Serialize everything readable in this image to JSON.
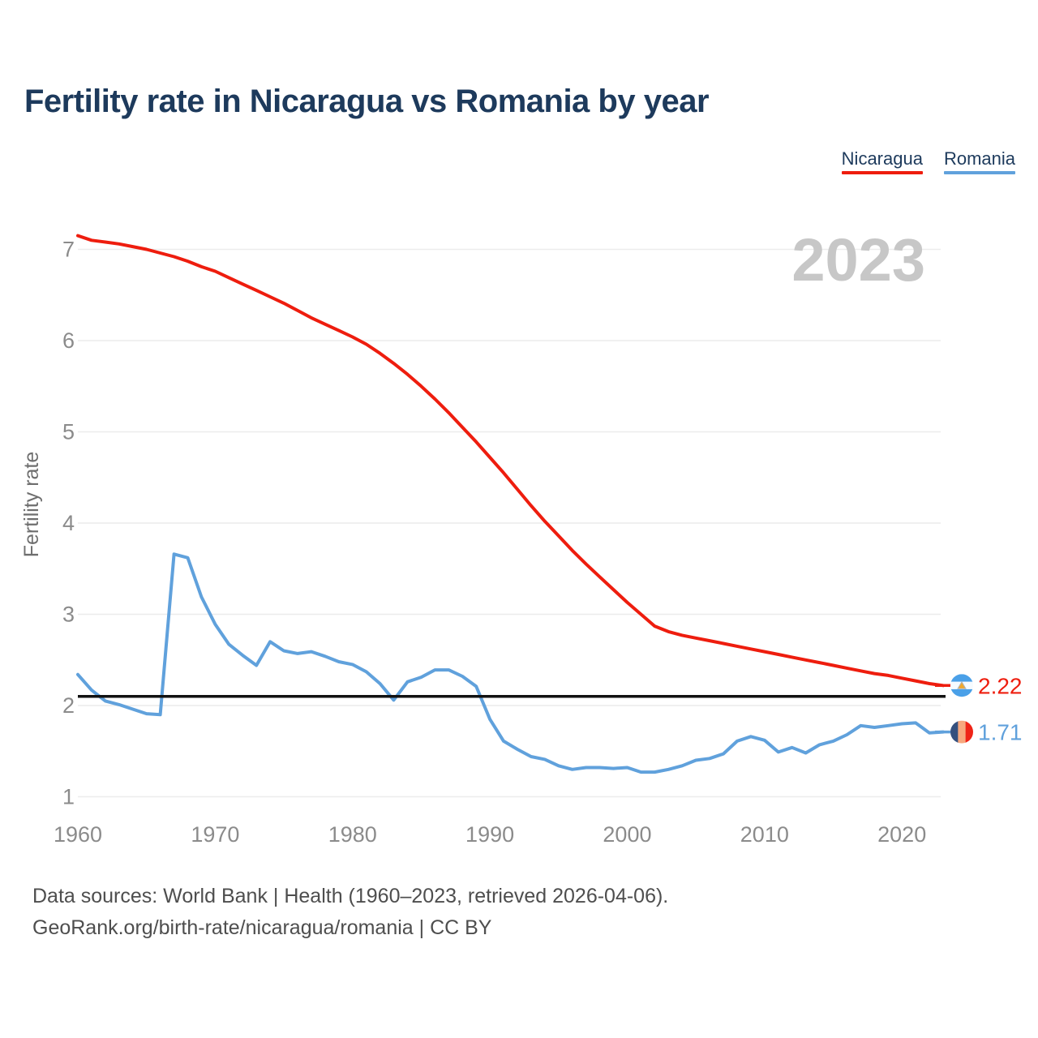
{
  "page": {
    "title": "Fertility rate in Nicaragua vs Romania by year"
  },
  "footer": {
    "line1": "Data sources: World Bank | Health (1960–2023, retrieved 2026-04-06).",
    "line2": "GeoRank.org/birth-rate/nicaragua/romania | CC BY"
  },
  "chart_data": {
    "type": "line",
    "title": "Fertility rate in Nicaragua vs Romania by year",
    "xlabel": "",
    "ylabel": "Fertility rate",
    "watermark": "2023",
    "x_range": [
      1960,
      2023
    ],
    "ylim": [
      0.85,
      7.3
    ],
    "x_ticks": [
      1960,
      1970,
      1980,
      1990,
      2000,
      2010,
      2020
    ],
    "y_ticks": [
      1,
      2,
      3,
      4,
      5,
      6,
      7
    ],
    "grid": "horizontal-only",
    "legend_position": "top-right",
    "reference_line": {
      "value": 2.1,
      "meaning": "replacement-level-fertility",
      "color": "#111111"
    },
    "colors": {
      "grid": "#ececec",
      "tick_label": "#8b8b8b",
      "axis_title": "#6e6e6e",
      "watermark": "#c7c7c7",
      "title_navy": "#1d3a5c"
    },
    "series": [
      {
        "name": "Nicaragua",
        "color": "#ee1d0e",
        "end_label": "2.22",
        "flag_icon": {
          "name": "nicaragua-flag-icon",
          "orientation": "horizontal",
          "stripes": [
            "#4aa0e8",
            "#f6fbff",
            "#4aa0e8"
          ],
          "emblem": "#f0a82e"
        },
        "values": [
          7.15,
          7.1,
          7.08,
          7.06,
          7.03,
          7.0,
          6.96,
          6.92,
          6.87,
          6.81,
          6.76,
          6.69,
          6.62,
          6.55,
          6.48,
          6.41,
          6.33,
          6.25,
          6.18,
          6.11,
          6.04,
          5.96,
          5.86,
          5.75,
          5.63,
          5.5,
          5.36,
          5.21,
          5.05,
          4.89,
          4.72,
          4.55,
          4.37,
          4.19,
          4.02,
          3.86,
          3.7,
          3.55,
          3.41,
          3.27,
          3.13,
          3.0,
          2.87,
          2.81,
          2.77,
          2.74,
          2.71,
          2.68,
          2.65,
          2.62,
          2.59,
          2.56,
          2.53,
          2.5,
          2.47,
          2.44,
          2.41,
          2.38,
          2.35,
          2.33,
          2.3,
          2.27,
          2.24,
          2.22
        ]
      },
      {
        "name": "Romania",
        "color": "#60a1dc",
        "end_label": "1.71",
        "flag_icon": {
          "name": "romania-flag-icon",
          "orientation": "vertical",
          "stripes": [
            "#35507e",
            "#f7a87e",
            "#ef2417"
          ]
        },
        "values": [
          2.34,
          2.17,
          2.05,
          2.01,
          1.96,
          1.91,
          1.9,
          3.66,
          3.62,
          3.19,
          2.89,
          2.67,
          2.55,
          2.44,
          2.7,
          2.6,
          2.57,
          2.59,
          2.54,
          2.48,
          2.45,
          2.37,
          2.24,
          2.06,
          2.26,
          2.31,
          2.39,
          2.39,
          2.32,
          2.21,
          1.85,
          1.61,
          1.52,
          1.44,
          1.41,
          1.34,
          1.3,
          1.32,
          1.32,
          1.31,
          1.32,
          1.27,
          1.27,
          1.3,
          1.34,
          1.4,
          1.42,
          1.47,
          1.61,
          1.66,
          1.62,
          1.49,
          1.54,
          1.48,
          1.57,
          1.61,
          1.68,
          1.78,
          1.76,
          1.78,
          1.8,
          1.81,
          1.7,
          1.71
        ]
      }
    ]
  }
}
